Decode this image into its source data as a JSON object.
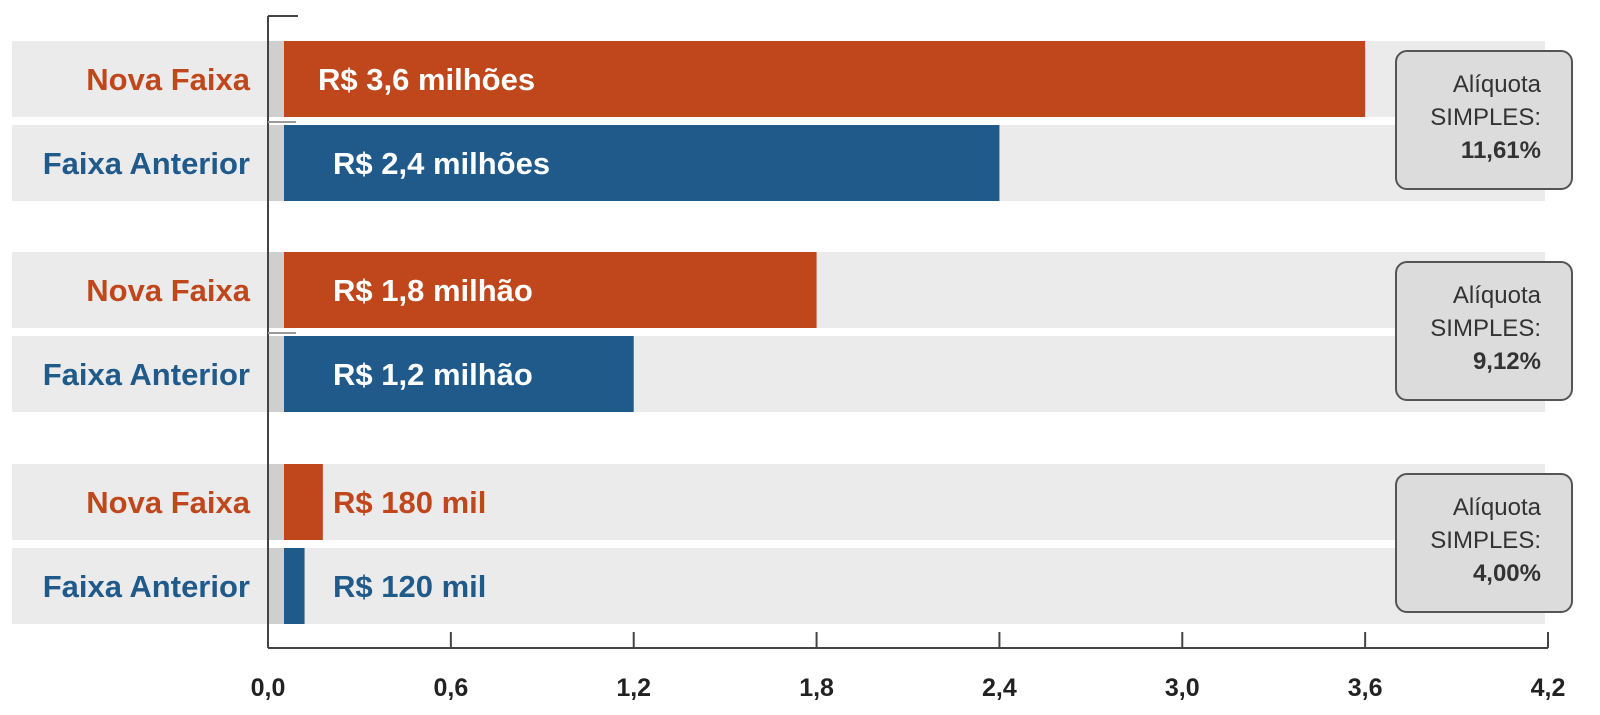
{
  "chart_data": {
    "type": "bar",
    "orientation": "horizontal",
    "title": "",
    "xlabel": "",
    "ylabel": "",
    "xlim": [
      0,
      4.2
    ],
    "x_ticks": [
      0,
      0.6,
      1.2,
      1.8,
      2.4,
      3.0,
      3.6,
      4.2
    ],
    "x_tick_labels": [
      "0,0",
      "0,6",
      "1,2",
      "1,8",
      "2,4",
      "3,0",
      "3,6",
      "4,2"
    ],
    "grid": false,
    "colors": {
      "nova": "#c0471c",
      "anterior": "#1f5a8b",
      "band": "#ebebeb",
      "box": "#dcdcdc",
      "axis": "#444444"
    },
    "groups": [
      {
        "rate_line1": "Alíquota",
        "rate_line2": "SIMPLES:",
        "rate_value": "11,61%",
        "bars": [
          {
            "category": "Nova Faixa",
            "series": "nova",
            "value": 3.6,
            "value_label": "R$ 3,6 milhões",
            "label_pos": "inside"
          },
          {
            "category": "Faixa Anterior",
            "series": "anterior",
            "value": 2.4,
            "value_label": "R$ 2,4 milhões",
            "label_pos": "inside"
          }
        ]
      },
      {
        "rate_line1": "Alíquota",
        "rate_line2": "SIMPLES:",
        "rate_value": "9,12%",
        "bars": [
          {
            "category": "Nova Faixa",
            "series": "nova",
            "value": 1.8,
            "value_label": "R$ 1,8 milhão",
            "label_pos": "inside"
          },
          {
            "category": "Faixa Anterior",
            "series": "anterior",
            "value": 1.2,
            "value_label": "R$ 1,2 milhão",
            "label_pos": "inside"
          }
        ]
      },
      {
        "rate_line1": "Alíquota",
        "rate_line2": "SIMPLES:",
        "rate_value": "4,00%",
        "bars": [
          {
            "category": "Nova Faixa",
            "series": "nova",
            "value": 0.18,
            "value_label": "R$ 180 mil",
            "label_pos": "outside"
          },
          {
            "category": "Faixa Anterior",
            "series": "anterior",
            "value": 0.12,
            "value_label": "R$ 120 mil",
            "label_pos": "outside"
          }
        ]
      }
    ]
  }
}
